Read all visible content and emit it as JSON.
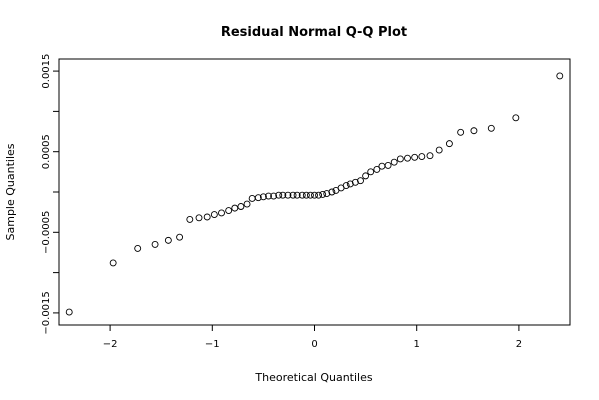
{
  "chart_data": {
    "type": "scatter",
    "title": "Residual Normal Q-Q Plot",
    "xlabel": "Theoretical Quantiles",
    "ylabel": "Sample Quantiles",
    "xlim": [
      -2.5,
      2.5
    ],
    "ylim": [
      -0.00165,
      0.00165
    ],
    "x_ticks": [
      -2,
      -1,
      0,
      1,
      2
    ],
    "x_tick_labels": [
      "−2",
      "−1",
      "0",
      "1",
      "2"
    ],
    "y_ticks": [
      -0.0015,
      -0.001,
      -0.0005,
      0,
      0.0005,
      0.001,
      0.0015
    ],
    "y_tick_labels": [
      "−0.0015",
      "",
      "−0.0005",
      "",
      "0.0005",
      "",
      "0.0015"
    ],
    "grid": false,
    "marker": "open-circle",
    "points": [
      {
        "x": -2.4,
        "y": -0.00149
      },
      {
        "x": -1.97,
        "y": -0.00088
      },
      {
        "x": -1.73,
        "y": -0.0007
      },
      {
        "x": -1.56,
        "y": -0.00065
      },
      {
        "x": -1.43,
        "y": -0.0006
      },
      {
        "x": -1.32,
        "y": -0.00056
      },
      {
        "x": -1.22,
        "y": -0.00034
      },
      {
        "x": -1.13,
        "y": -0.00032
      },
      {
        "x": -1.05,
        "y": -0.00031
      },
      {
        "x": -0.98,
        "y": -0.00028
      },
      {
        "x": -0.91,
        "y": -0.00026
      },
      {
        "x": -0.84,
        "y": -0.00023
      },
      {
        "x": -0.78,
        "y": -0.0002
      },
      {
        "x": -0.72,
        "y": -0.00018
      },
      {
        "x": -0.66,
        "y": -0.00015
      },
      {
        "x": -0.61,
        "y": -8e-05
      },
      {
        "x": -0.55,
        "y": -7e-05
      },
      {
        "x": -0.5,
        "y": -6e-05
      },
      {
        "x": -0.45,
        "y": -5e-05
      },
      {
        "x": -0.4,
        "y": -5e-05
      },
      {
        "x": -0.35,
        "y": -4e-05
      },
      {
        "x": -0.31,
        "y": -4e-05
      },
      {
        "x": -0.26,
        "y": -4e-05
      },
      {
        "x": -0.21,
        "y": -4e-05
      },
      {
        "x": -0.17,
        "y": -4e-05
      },
      {
        "x": -0.12,
        "y": -4e-05
      },
      {
        "x": -0.08,
        "y": -4e-05
      },
      {
        "x": -0.04,
        "y": -4e-05
      },
      {
        "x": 0.0,
        "y": -4e-05
      },
      {
        "x": 0.04,
        "y": -4e-05
      },
      {
        "x": 0.08,
        "y": -3e-05
      },
      {
        "x": 0.12,
        "y": -2e-05
      },
      {
        "x": 0.17,
        "y": 0.0
      },
      {
        "x": 0.21,
        "y": 2e-05
      },
      {
        "x": 0.26,
        "y": 5e-05
      },
      {
        "x": 0.31,
        "y": 8e-05
      },
      {
        "x": 0.35,
        "y": 0.0001
      },
      {
        "x": 0.4,
        "y": 0.00012
      },
      {
        "x": 0.45,
        "y": 0.00014
      },
      {
        "x": 0.5,
        "y": 0.0002
      },
      {
        "x": 0.55,
        "y": 0.00025
      },
      {
        "x": 0.61,
        "y": 0.00028
      },
      {
        "x": 0.66,
        "y": 0.00032
      },
      {
        "x": 0.72,
        "y": 0.00033
      },
      {
        "x": 0.78,
        "y": 0.00037
      },
      {
        "x": 0.84,
        "y": 0.00041
      },
      {
        "x": 0.91,
        "y": 0.00042
      },
      {
        "x": 0.98,
        "y": 0.00043
      },
      {
        "x": 1.05,
        "y": 0.00044
      },
      {
        "x": 1.13,
        "y": 0.00045
      },
      {
        "x": 1.22,
        "y": 0.00052
      },
      {
        "x": 1.32,
        "y": 0.0006
      },
      {
        "x": 1.43,
        "y": 0.00074
      },
      {
        "x": 1.56,
        "y": 0.00076
      },
      {
        "x": 1.73,
        "y": 0.00079
      },
      {
        "x": 1.97,
        "y": 0.00092
      },
      {
        "x": 2.4,
        "y": 0.00144
      }
    ]
  }
}
